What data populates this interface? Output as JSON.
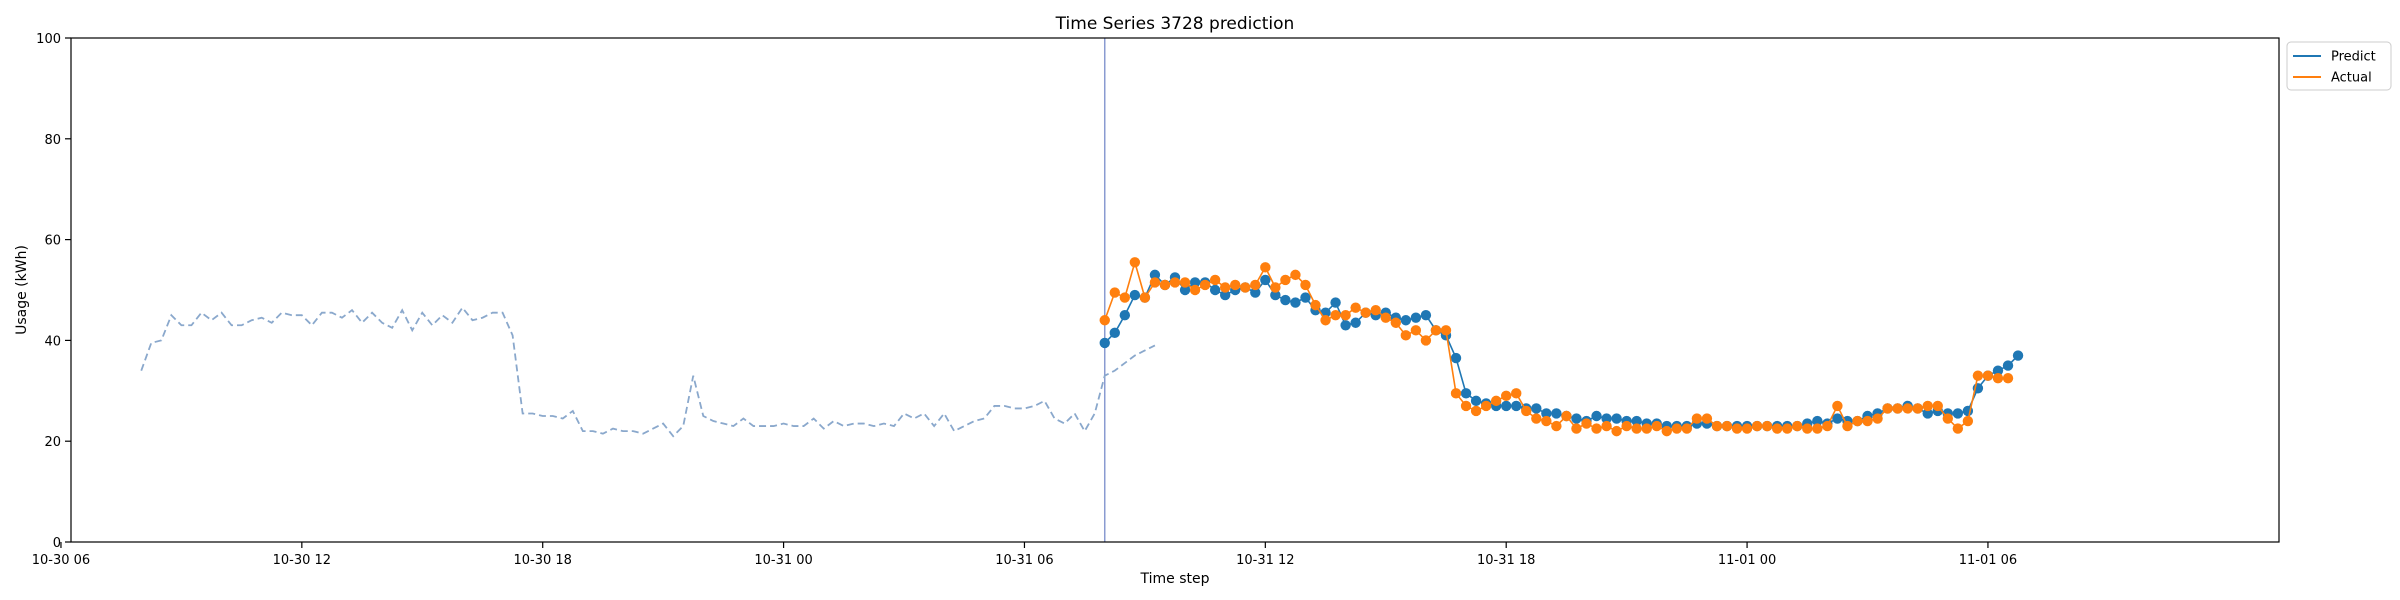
{
  "chart_data": {
    "type": "line",
    "title": "Time Series 3728 prediction",
    "xlabel": "Time step",
    "ylabel": "Usage (kWh)",
    "ylim": [
      0,
      100
    ],
    "yticks": [
      0,
      20,
      40,
      60,
      80,
      100
    ],
    "xlim": [
      "2025-10-30 06:15",
      "2025-11-01 13:15"
    ],
    "xticks": [
      {
        "t": "2025-10-30 06:00",
        "label": "10-30 06"
      },
      {
        "t": "2025-10-30 12:00",
        "label": "10-30 12"
      },
      {
        "t": "2025-10-30 18:00",
        "label": "10-30 18"
      },
      {
        "t": "2025-10-31 00:00",
        "label": "10-31 00"
      },
      {
        "t": "2025-10-31 06:00",
        "label": "10-31 06"
      },
      {
        "t": "2025-10-31 12:00",
        "label": "10-31 12"
      },
      {
        "t": "2025-10-31 18:00",
        "label": "10-31 18"
      },
      {
        "t": "2025-11-01 00:00",
        "label": "11-01 00"
      },
      {
        "t": "2025-11-01 06:00",
        "label": "11-01 06"
      }
    ],
    "split_time": "2025-10-31 08:00",
    "legend": {
      "position": "top-right (outside plot)"
    },
    "colors": {
      "history": "#8aa8cc",
      "predict": "#1f77b4",
      "actual": "#ff7f0e",
      "split_line": "#8a9bd1"
    },
    "step_minutes": 15,
    "series": [
      {
        "name": "",
        "role": "history",
        "style": "dashed",
        "start": "2025-10-30 08:00",
        "values": [
          34,
          39.5,
          40,
          45,
          43,
          43,
          45.5,
          44,
          45.5,
          43,
          43,
          44,
          44.5,
          43.5,
          45.5,
          45,
          45,
          43,
          45.5,
          45.5,
          44.5,
          46,
          43.5,
          45.5,
          43.5,
          42.5,
          46,
          42,
          45.5,
          43,
          45,
          43.5,
          46.5,
          44,
          44.5,
          45.5,
          45.5,
          41,
          25.5,
          25.5,
          25,
          25,
          24.5,
          26,
          22,
          22,
          21.5,
          22.5,
          22,
          22,
          21.5,
          22.5,
          23.5,
          21,
          23,
          33,
          25,
          24,
          23.5,
          23,
          24.5,
          23,
          23,
          23,
          23.5,
          23,
          23,
          24.5,
          22.5,
          24,
          23,
          23.5,
          23.5,
          23,
          23.5,
          23,
          25.5,
          24.5,
          25.5,
          23,
          25.5,
          22,
          23,
          24,
          24.5,
          27,
          27,
          26.5,
          26.5,
          27,
          28,
          24.5,
          23.5,
          25.5,
          22,
          25.5,
          33,
          34,
          35.5,
          37,
          38,
          39
        ]
      },
      {
        "name": "Predict",
        "role": "predict",
        "start": "2025-10-31 08:00",
        "values": [
          39.5,
          41.5,
          45,
          49,
          48.5,
          53,
          51,
          52.5,
          50,
          51.5,
          51.5,
          50,
          49,
          50,
          50.5,
          49.5,
          52,
          49,
          48,
          47.5,
          48.5,
          46,
          45.5,
          47.5,
          43,
          43.5,
          45.5,
          45,
          45.5,
          44.5,
          44,
          44.5,
          45,
          42,
          41,
          36.5,
          29.5,
          28,
          27.5,
          27,
          27,
          27,
          26.5,
          26.5,
          25.5,
          25.5,
          25,
          24.5,
          24,
          25,
          24.5,
          24.5,
          24,
          24,
          23.5,
          23.5,
          23,
          23,
          23,
          23.5,
          23.5,
          23,
          23,
          23,
          23,
          23,
          23,
          23,
          23,
          23,
          23.5,
          24,
          23.5,
          24.5,
          24,
          24,
          25,
          25.5,
          26.5,
          26.5,
          27,
          26.5,
          25.5,
          26,
          25.5,
          25.5,
          26,
          30.5,
          33,
          34,
          35,
          37
        ]
      },
      {
        "name": "Actual",
        "role": "actual",
        "start": "2025-10-31 08:00",
        "values": [
          44,
          49.5,
          48.5,
          55.5,
          48.5,
          51.5,
          51,
          51.5,
          51.5,
          50,
          51,
          52,
          50.5,
          51,
          50.5,
          51,
          54.5,
          50.5,
          52,
          53,
          51,
          47,
          44,
          45,
          45,
          46.5,
          45.5,
          46,
          44.5,
          43.5,
          41,
          42,
          40,
          42,
          42,
          29.5,
          27,
          26,
          27,
          28,
          29,
          29.5,
          26,
          24.5,
          24,
          23,
          25,
          22.5,
          23.5,
          22.5,
          23,
          22,
          23,
          22.5,
          22.5,
          23,
          22,
          22.5,
          22.5,
          24.5,
          24.5,
          23,
          23,
          22.5,
          22.5,
          23,
          23,
          22.5,
          22.5,
          23,
          22.5,
          22.5,
          23,
          27,
          23,
          24,
          24,
          24.5,
          26.5,
          26.5,
          26.5,
          26.5,
          27,
          27,
          24.5,
          22.5,
          24,
          33,
          33,
          32.5,
          32.5
        ]
      }
    ]
  }
}
